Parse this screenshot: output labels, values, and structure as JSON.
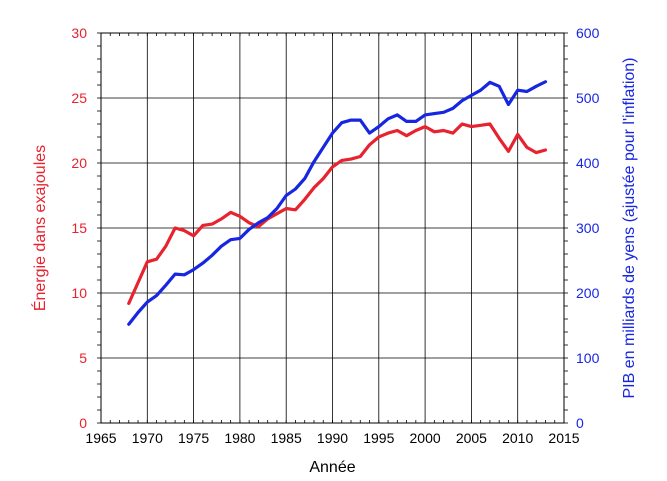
{
  "chart_data": {
    "type": "line",
    "xlabel": "Année",
    "ylabel_left": "Énergie dans exajoules",
    "ylabel_right": "PIB en milliards de yens (ajustée pour l'inflation)",
    "xlim": [
      1965,
      2015
    ],
    "ylim_left": [
      0,
      30
    ],
    "ylim_right": [
      0,
      600
    ],
    "grid": true,
    "x_ticks": [
      1965,
      1970,
      1975,
      1980,
      1985,
      1990,
      1995,
      2000,
      2005,
      2010,
      2015
    ],
    "y_ticks_left": [
      0,
      5,
      10,
      15,
      20,
      25,
      30
    ],
    "y_ticks_right": [
      0,
      100,
      200,
      300,
      400,
      500,
      600
    ],
    "colors": {
      "energy": "#e8222e",
      "gdp": "#1726e0",
      "grid": "#000000"
    },
    "series": [
      {
        "axis": "left",
        "color": "#e8222e",
        "x": [
          1968,
          1969,
          1970,
          1971,
          1972,
          1973,
          1974,
          1975,
          1976,
          1977,
          1978,
          1979,
          1980,
          1981,
          1982,
          1983,
          1984,
          1985,
          1986,
          1987,
          1988,
          1989,
          1990,
          1991,
          1992,
          1993,
          1994,
          1995,
          1996,
          1997,
          1998,
          1999,
          2000,
          2001,
          2002,
          2003,
          2004,
          2005,
          2006,
          2007,
          2008,
          2009,
          2010,
          2011,
          2012,
          2013
        ],
        "values": [
          9.2,
          10.8,
          12.4,
          12.6,
          13.6,
          15.0,
          14.8,
          14.4,
          15.2,
          15.3,
          15.7,
          16.2,
          15.9,
          15.4,
          15.1,
          15.7,
          16.1,
          16.5,
          16.4,
          17.2,
          18.1,
          18.8,
          19.7,
          20.2,
          20.3,
          20.5,
          21.4,
          22.0,
          22.3,
          22.5,
          22.1,
          22.5,
          22.8,
          22.4,
          22.5,
          22.3,
          23.0,
          22.8,
          22.9,
          23.0,
          21.9,
          20.9,
          22.2,
          21.2,
          20.8,
          21.0
        ]
      },
      {
        "axis": "right",
        "color": "#1726e0",
        "x": [
          1968,
          1969,
          1970,
          1971,
          1972,
          1973,
          1974,
          1975,
          1976,
          1977,
          1978,
          1979,
          1980,
          1981,
          1982,
          1983,
          1984,
          1985,
          1986,
          1987,
          1988,
          1989,
          1990,
          1991,
          1992,
          1993,
          1994,
          1995,
          1996,
          1997,
          1998,
          1999,
          2000,
          2001,
          2002,
          2003,
          2004,
          2005,
          2006,
          2007,
          2008,
          2009,
          2010,
          2011,
          2012,
          2013
        ],
        "values": [
          152,
          170,
          186,
          196,
          212,
          229,
          228,
          236,
          246,
          258,
          272,
          282,
          284,
          298,
          308,
          316,
          330,
          350,
          360,
          376,
          402,
          424,
          446,
          462,
          466,
          466,
          446,
          456,
          468,
          474,
          464,
          464,
          474,
          476,
          478,
          484,
          496,
          504,
          512,
          524,
          518,
          490,
          512,
          510,
          518,
          525
        ]
      }
    ]
  }
}
